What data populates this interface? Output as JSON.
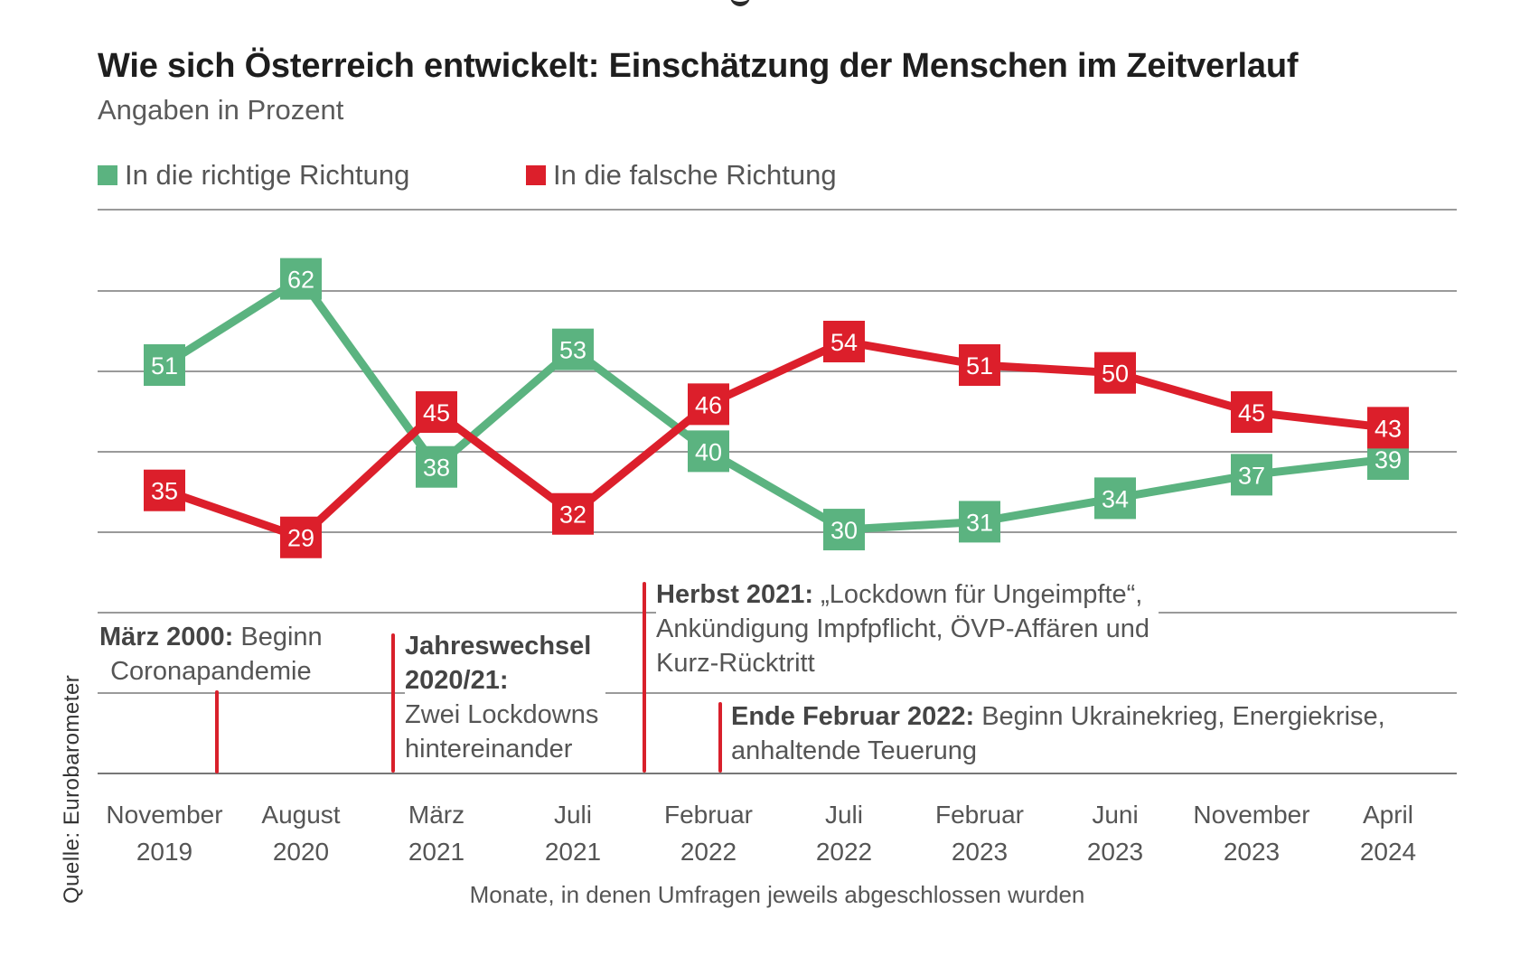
{
  "header": {
    "title": "Wie sich Österreich entwickelt: Einschätzung der Menschen im Zeitverlauf",
    "subtitle": "Angaben in Prozent"
  },
  "legend": [
    {
      "label": "In die richtige Richtung",
      "color": "#5bb380"
    },
    {
      "label": "In die falsche Richtung",
      "color": "#dc1f2b"
    }
  ],
  "source": "Quelle: Eurobarometer",
  "annotations": [
    {
      "bold": "März 2000:",
      "text": " Beginn",
      "line2": "Coronapandemie"
    },
    {
      "bold": "Jahreswechsel",
      "bold2": "2020/21:",
      "line3": "Zwei Lockdowns",
      "line4": "hintereinander"
    },
    {
      "bold": "Herbst 2021:",
      "text": " „Lockdown für Ungeimpfte“,",
      "line2": "Ankündigung Impfpflicht, ÖVP-Affären und",
      "line3": "Kurz-Rücktritt"
    },
    {
      "bold": "Ende Februar 2022:",
      "text": " Beginn Ukrainekrieg, Energiekrise,",
      "line2": "anhaltende Teuerung"
    }
  ],
  "chart_data": {
    "type": "line",
    "title": "Wie sich Österreich entwickelt: Einschätzung der Menschen im Zeitverlauf",
    "subtitle": "Angaben in Prozent",
    "xlabel": "Monate, in denen Umfragen jeweils abgeschlossen wurden",
    "ylabel": "",
    "grid": true,
    "legend_position": "top-left",
    "categories": [
      [
        "November",
        "2019"
      ],
      [
        "August",
        "2020"
      ],
      [
        "März",
        "2021"
      ],
      [
        "Juli",
        "2021"
      ],
      [
        "Februar",
        "2022"
      ],
      [
        "Juli",
        "2022"
      ],
      [
        "Februar",
        "2023"
      ],
      [
        "Juni",
        "2023"
      ],
      [
        "November",
        "2023"
      ],
      [
        "April",
        "2024"
      ]
    ],
    "series": [
      {
        "name": "In die richtige Richtung",
        "color": "#5bb380",
        "values": [
          51,
          62,
          38,
          53,
          40,
          30,
          31,
          34,
          37,
          39
        ]
      },
      {
        "name": "In die falsche Richtung",
        "color": "#dc1f2b",
        "values": [
          35,
          29,
          45,
          32,
          46,
          54,
          51,
          50,
          45,
          43
        ]
      }
    ]
  }
}
